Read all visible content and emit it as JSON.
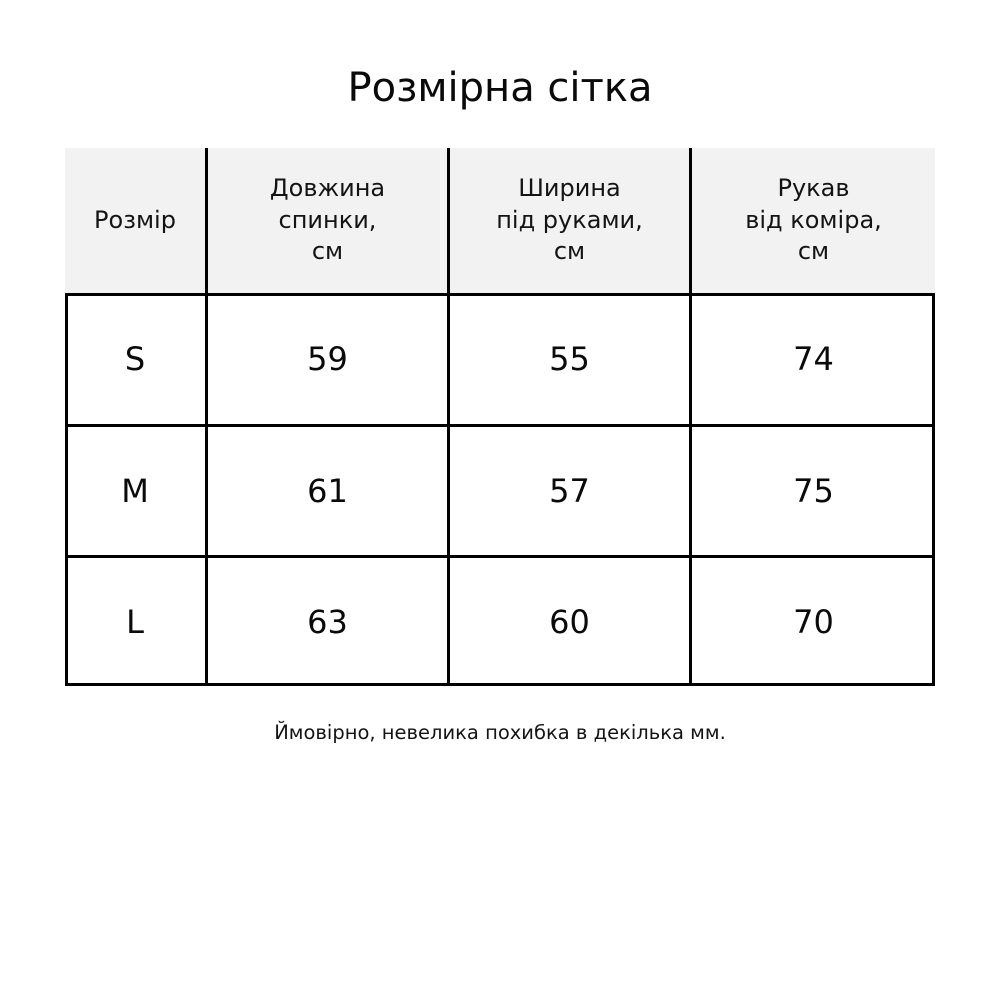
{
  "title": "Розмірна сітка",
  "size_table": {
    "headers": [
      "Розмір",
      "Довжина\nспинки,\nсм",
      "Ширина\nпід руками,\nсм",
      "Рукав\nвід коміра,\nсм"
    ],
    "rows": [
      [
        "S",
        "59",
        "55",
        "74"
      ],
      [
        "M",
        "61",
        "57",
        "75"
      ],
      [
        "L",
        "63",
        "60",
        "70"
      ]
    ]
  },
  "footer_note": "Ймовірно, невелика похибка в декілька мм.",
  "colors": {
    "page_background": "#ffffff",
    "header_row_background": "#f2f2f2",
    "border": "#000000",
    "text": "#111111"
  }
}
